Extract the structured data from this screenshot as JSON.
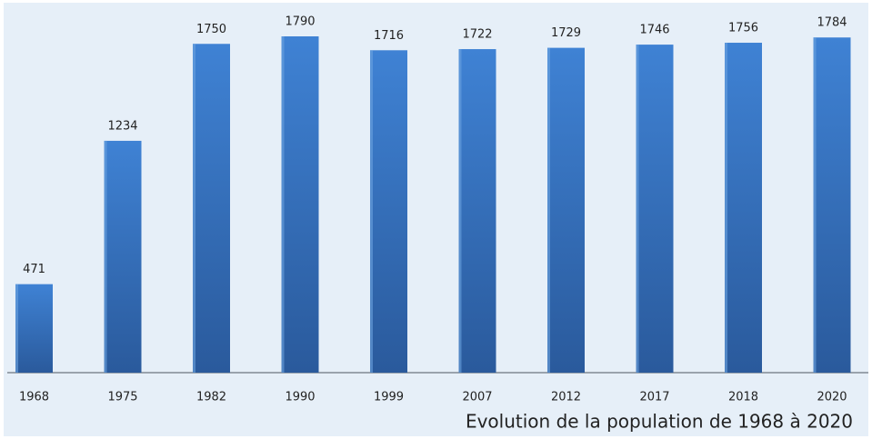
{
  "chart_data": {
    "type": "bar",
    "title": "Evolution de la population de 1968 à 2020",
    "categories": [
      "1968",
      "1975",
      "1982",
      "1990",
      "1999",
      "2007",
      "2012",
      "2017",
      "2018",
      "2020"
    ],
    "values": [
      471,
      1234,
      1750,
      1790,
      1716,
      1722,
      1729,
      1746,
      1756,
      1784
    ],
    "color": "#3b78c4"
  }
}
